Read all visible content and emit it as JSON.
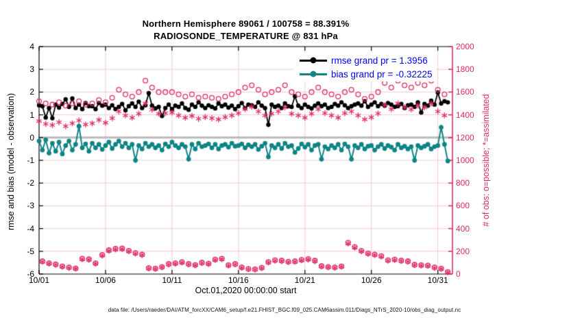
{
  "title": {
    "line1": "Northern Hemisphere 89061 / 100758 = 88.391%",
    "line2": "RADIOSONDE_TEMPERATURE @ 831 hPa"
  },
  "legend": {
    "text_color": "#0000ee",
    "entries": [
      {
        "label": "rmse grand pr = 1.3956",
        "color": "#000000"
      },
      {
        "label": "bias grand pr = -0.32225",
        "color": "#0e8585"
      }
    ]
  },
  "footer": {
    "data_file": "data file: /Users/raeder/DAI/ATM_forcXX/CAM6_setup/f.e21.FHIST_BGC.f09_025.CAM6assim.011/Diags_NTrS_2020-10/obs_diag_output.nc"
  },
  "chart_data": {
    "type": "line",
    "title": "Northern Hemisphere 89061 / 100758 = 88.391% | RADIOSONDE_TEMPERATURE @ 831 hPa",
    "xlabel": "Oct.01,2020 00:00:00 start",
    "ylabel_left": "rmse and bias (model - observation)",
    "ylabel_right": "# of obs: o=possible; *=assimilated",
    "xlim_days": [
      0,
      31.1
    ],
    "ylim_left": [
      -6,
      4
    ],
    "ylim_right": [
      0,
      2000
    ],
    "x_step_days": 0.25,
    "grid_on": true,
    "legend_position": "top-right-inside",
    "colors": {
      "rmse": "#000000",
      "bias": "#0e8585",
      "obs": "#df2a62",
      "grid": "#f5c9d6",
      "zero_line": "#b9b9b9"
    },
    "xticks": [
      {
        "day": 0,
        "label": "10/01"
      },
      {
        "day": 5,
        "label": "10/06"
      },
      {
        "day": 10,
        "label": "10/11"
      },
      {
        "day": 15,
        "label": "10/16"
      },
      {
        "day": 20,
        "label": "10/21"
      },
      {
        "day": 25,
        "label": "10/26"
      },
      {
        "day": 30,
        "label": "10/31"
      }
    ],
    "yticks_left": [
      4,
      3,
      2,
      1,
      0,
      -1,
      -2,
      -3,
      -4,
      -5,
      -6
    ],
    "yticks_right": [
      2000,
      1800,
      1600,
      1400,
      1200,
      1000,
      800,
      600,
      400,
      200,
      0
    ],
    "series": [
      {
        "name": "rmse",
        "axis": "left",
        "color": "#000000",
        "marker": "filled-circle",
        "grand_mean": 1.3956,
        "values": [
          1.42,
          1.38,
          0.88,
          1.3,
          0.85,
          1.45,
          1.32,
          1.48,
          1.68,
          1.35,
          1.72,
          1.3,
          1.45,
          1.25,
          1.52,
          1.38,
          1.38,
          1.25,
          1.52,
          1.4,
          1.45,
          1.3,
          1.42,
          1.25,
          1.35,
          1.48,
          1.2,
          1.38,
          1.5,
          1.35,
          1.58,
          1.3,
          1.42,
          1.95,
          1.4,
          1.28,
          1.35,
          0.95,
          1.3,
          1.45,
          1.25,
          1.4,
          1.35,
          1.5,
          1.3,
          1.22,
          1.45,
          1.35,
          1.55,
          1.4,
          1.3,
          1.42,
          1.35,
          1.28,
          1.5,
          1.38,
          1.45,
          1.32,
          1.4,
          1.25,
          1.38,
          1.52,
          1.3,
          1.45,
          1.42,
          1.35,
          1.55,
          1.4,
          1.3,
          0.57,
          1.45,
          1.35,
          1.4,
          1.3,
          1.5,
          1.38,
          1.35,
          1.82,
          1.4,
          1.3,
          1.45,
          1.35,
          1.28,
          1.4,
          1.5,
          1.38,
          1.45,
          1.3,
          1.35,
          1.48,
          1.4,
          1.55,
          1.42,
          1.3,
          1.38,
          1.45,
          1.5,
          1.4,
          1.6,
          1.35,
          1.45,
          1.55,
          1.38,
          1.48,
          1.4,
          1.52,
          1.45,
          1.35,
          1.38,
          1.48,
          1.3,
          1.42,
          1.45,
          1.35,
          1.55,
          1.1,
          1.48,
          1.4,
          1.62,
          1.45,
          1.98,
          1.5,
          1.6,
          1.55
        ]
      },
      {
        "name": "bias",
        "axis": "left",
        "color": "#0e8585",
        "marker": "filled-circle",
        "grand_mean": -0.32225,
        "values": [
          -0.15,
          -0.55,
          -0.1,
          -0.68,
          -0.25,
          -0.6,
          -0.2,
          -0.72,
          -0.35,
          -0.15,
          -0.55,
          -0.3,
          0.5,
          -0.45,
          -0.28,
          -0.6,
          -0.25,
          -0.45,
          -0.3,
          -0.52,
          -0.35,
          -0.2,
          -0.48,
          -0.3,
          -0.15,
          -0.4,
          -0.25,
          -0.45,
          -0.3,
          -1.0,
          -0.35,
          -0.5,
          -0.25,
          -0.4,
          -0.3,
          -0.45,
          -0.35,
          -0.55,
          -0.28,
          -0.4,
          -0.2,
          -0.35,
          -0.45,
          -0.3,
          -0.4,
          -0.95,
          -0.3,
          -0.5,
          -0.25,
          -0.4,
          -0.35,
          -0.28,
          -0.45,
          -0.3,
          -0.5,
          -0.35,
          -0.3,
          -0.42,
          -0.25,
          -0.38,
          -0.35,
          -0.28,
          -0.45,
          -0.32,
          -0.4,
          -0.3,
          -0.52,
          -0.38,
          -0.25,
          -0.85,
          -0.35,
          -0.45,
          -0.3,
          -0.48,
          -0.25,
          -0.4,
          -0.35,
          -0.65,
          -0.48,
          -0.28,
          -0.42,
          -0.3,
          -0.55,
          -0.35,
          -0.3,
          -0.95,
          -0.4,
          -0.5,
          -0.35,
          -0.45,
          -0.3,
          -0.55,
          -0.28,
          -0.4,
          -0.95,
          -0.35,
          -0.45,
          -0.3,
          -0.5,
          -0.38,
          -0.35,
          -0.55,
          -0.4,
          -0.3,
          -0.48,
          -0.35,
          -0.42,
          -0.55,
          -0.3,
          -0.45,
          -0.38,
          -0.5,
          -0.4,
          -1.0,
          -0.35,
          -0.45,
          -0.38,
          -0.3,
          -0.5,
          -0.4,
          -0.35,
          0.45,
          -0.3,
          -1.03
        ]
      },
      {
        "name": "possible",
        "axis": "right",
        "color": "#df2a62",
        "marker": "open-circle",
        "total": 100758,
        "values": [
          1520,
          112,
          1500,
          95,
          1490,
          85,
          1510,
          68,
          1480,
          58,
          1500,
          50,
          1520,
          135,
          1490,
          130,
          1500,
          95,
          1530,
          168,
          1510,
          210,
          1550,
          222,
          1620,
          225,
          1580,
          205,
          1560,
          185,
          1600,
          172,
          1700,
          52,
          1640,
          48,
          1600,
          62,
          1600,
          88,
          1600,
          95,
          1580,
          105,
          1560,
          88,
          1580,
          80,
          1550,
          100,
          1560,
          92,
          1550,
          128,
          1540,
          135,
          1560,
          78,
          1580,
          88,
          1600,
          58,
          1640,
          45,
          1660,
          42,
          1620,
          55,
          1580,
          105,
          1600,
          122,
          1620,
          118,
          1660,
          108,
          1600,
          112,
          1580,
          125,
          1560,
          132,
          1600,
          118,
          1640,
          70,
          1600,
          62,
          1580,
          58,
          1560,
          68,
          1600,
          275,
          1620,
          238,
          1580,
          205,
          1540,
          182,
          1560,
          172,
          1600,
          158,
          1680,
          122,
          1640,
          128,
          1700,
          118,
          1660,
          112,
          1640,
          82,
          1680,
          78,
          1660,
          75,
          1700,
          58,
          1620,
          48,
          1580,
          18
        ]
      },
      {
        "name": "assimilated",
        "axis": "right",
        "color": "#df2a62",
        "marker": "asterisk",
        "total": 89061,
        "values": [
          1345,
          108,
          1320,
          92,
          1310,
          82,
          1335,
          65,
          1300,
          55,
          1325,
          48,
          1350,
          130,
          1315,
          126,
          1325,
          92,
          1355,
          163,
          1330,
          205,
          1370,
          217,
          1430,
          220,
          1395,
          200,
          1375,
          180,
          1410,
          168,
          1500,
          50,
          1445,
          45,
          1410,
          60,
          1415,
          85,
          1420,
          92,
          1395,
          101,
          1375,
          85,
          1390,
          77,
          1365,
          97,
          1380,
          89,
          1370,
          124,
          1360,
          131,
          1380,
          75,
          1395,
          85,
          1415,
          56,
          1450,
          43,
          1470,
          40,
          1430,
          53,
          1395,
          102,
          1410,
          118,
          1430,
          114,
          1465,
          105,
          1410,
          108,
          1395,
          121,
          1375,
          128,
          1410,
          114,
          1450,
          67,
          1415,
          60,
          1395,
          56,
          1375,
          65,
          1415,
          268,
          1430,
          232,
          1395,
          200,
          1360,
          178,
          1378,
          168,
          1412,
          154,
          1485,
          118,
          1450,
          124,
          1500,
          115,
          1465,
          109,
          1448,
          79,
          1482,
          75,
          1465,
          72,
          1500,
          55,
          1430,
          45,
          1395,
          15
        ]
      }
    ]
  }
}
